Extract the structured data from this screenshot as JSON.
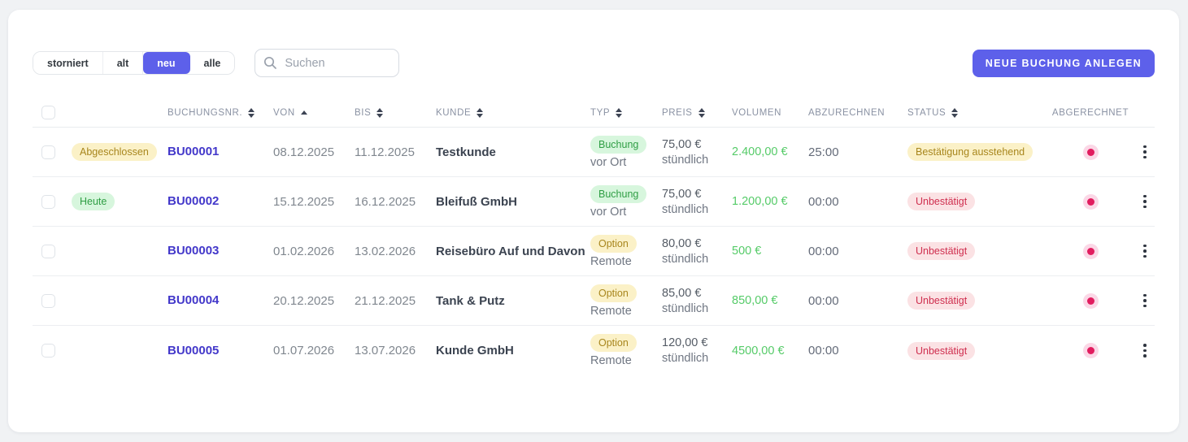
{
  "colors": {
    "accent_purple": "#5d60ea",
    "link_indigo": "#4338ca",
    "money_green": "#55cb68",
    "dot_red": "#e11d5f",
    "dot_halo": "#fbd7e6"
  },
  "toolbar": {
    "filters": [
      {
        "label": "storniert",
        "active": false
      },
      {
        "label": "alt",
        "active": false
      },
      {
        "label": "neu",
        "active": true
      },
      {
        "label": "alle",
        "active": false
      }
    ],
    "search_placeholder": "Suchen",
    "new_booking_label": "NEUE BUCHUNG ANLEGEN"
  },
  "table": {
    "columns": [
      {
        "key": "buchungsnr",
        "label": "BUCHUNGSNR.",
        "sort": "both",
        "align": "left"
      },
      {
        "key": "von",
        "label": "VON",
        "sort": "asc",
        "align": "left"
      },
      {
        "key": "bis",
        "label": "BIS",
        "sort": "both",
        "align": "left"
      },
      {
        "key": "kunde",
        "label": "KUNDE",
        "sort": "both",
        "align": "left"
      },
      {
        "key": "typ",
        "label": "TYP",
        "sort": "both",
        "align": "left"
      },
      {
        "key": "preis",
        "label": "PREIS",
        "sort": "both",
        "align": "left"
      },
      {
        "key": "volumen",
        "label": "VOLUMEN",
        "sort": "none",
        "align": "left"
      },
      {
        "key": "abzurechnen",
        "label": "ABZURECHNEN",
        "sort": "none",
        "align": "left"
      },
      {
        "key": "status",
        "label": "STATUS",
        "sort": "both",
        "align": "left"
      },
      {
        "key": "abgerechnet",
        "label": "ABGERECHNET",
        "sort": "none",
        "align": "center"
      }
    ],
    "rows": [
      {
        "state_badge": {
          "label": "Abgeschlossen",
          "variant": "yellow"
        },
        "booking_no": "BU00001",
        "von": "08.12.2025",
        "bis": "11.12.2025",
        "kunde": "Testkunde",
        "typ_badge": {
          "label": "Buchung",
          "variant": "green"
        },
        "typ_sub": "vor Ort",
        "preis": "75,00 €",
        "preis_sub": "stündlich",
        "volumen": "2.400,00 €",
        "abzurechnen": "25:00",
        "status_badge": {
          "label": "Bestätigung ausstehend",
          "variant": "yellow"
        },
        "abgerechnet_dot": true
      },
      {
        "state_badge": {
          "label": "Heute",
          "variant": "green"
        },
        "booking_no": "BU00002",
        "von": "15.12.2025",
        "bis": "16.12.2025",
        "kunde": "Bleifuß GmbH",
        "typ_badge": {
          "label": "Buchung",
          "variant": "green"
        },
        "typ_sub": "vor Ort",
        "preis": "75,00 €",
        "preis_sub": "stündlich",
        "volumen": "1.200,00 €",
        "abzurechnen": "00:00",
        "status_badge": {
          "label": "Unbestätigt",
          "variant": "red"
        },
        "abgerechnet_dot": true
      },
      {
        "state_badge": null,
        "booking_no": "BU00003",
        "von": "01.02.2026",
        "bis": "13.02.2026",
        "kunde": "Reisebüro Auf und Davon",
        "typ_badge": {
          "label": "Option",
          "variant": "yellow"
        },
        "typ_sub": "Remote",
        "preis": "80,00 €",
        "preis_sub": "stündlich",
        "volumen": "500 €",
        "abzurechnen": "00:00",
        "status_badge": {
          "label": "Unbestätigt",
          "variant": "red"
        },
        "abgerechnet_dot": true
      },
      {
        "state_badge": null,
        "booking_no": "BU00004",
        "von": "20.12.2025",
        "bis": "21.12.2025",
        "kunde": "Tank & Putz",
        "typ_badge": {
          "label": "Option",
          "variant": "yellow"
        },
        "typ_sub": "Remote",
        "preis": "85,00 €",
        "preis_sub": "stündlich",
        "volumen": "850,00 €",
        "abzurechnen": "00:00",
        "status_badge": {
          "label": "Unbestätigt",
          "variant": "red"
        },
        "abgerechnet_dot": true
      },
      {
        "state_badge": null,
        "booking_no": "BU00005",
        "von": "01.07.2026",
        "bis": "13.07.2026",
        "kunde": "Kunde GmbH",
        "typ_badge": {
          "label": "Option",
          "variant": "yellow"
        },
        "typ_sub": "Remote",
        "preis": "120,00 €",
        "preis_sub": "stündlich",
        "volumen": "4500,00 €",
        "abzurechnen": "00:00",
        "status_badge": {
          "label": "Unbestätigt",
          "variant": "red"
        },
        "abgerechnet_dot": true
      }
    ]
  }
}
